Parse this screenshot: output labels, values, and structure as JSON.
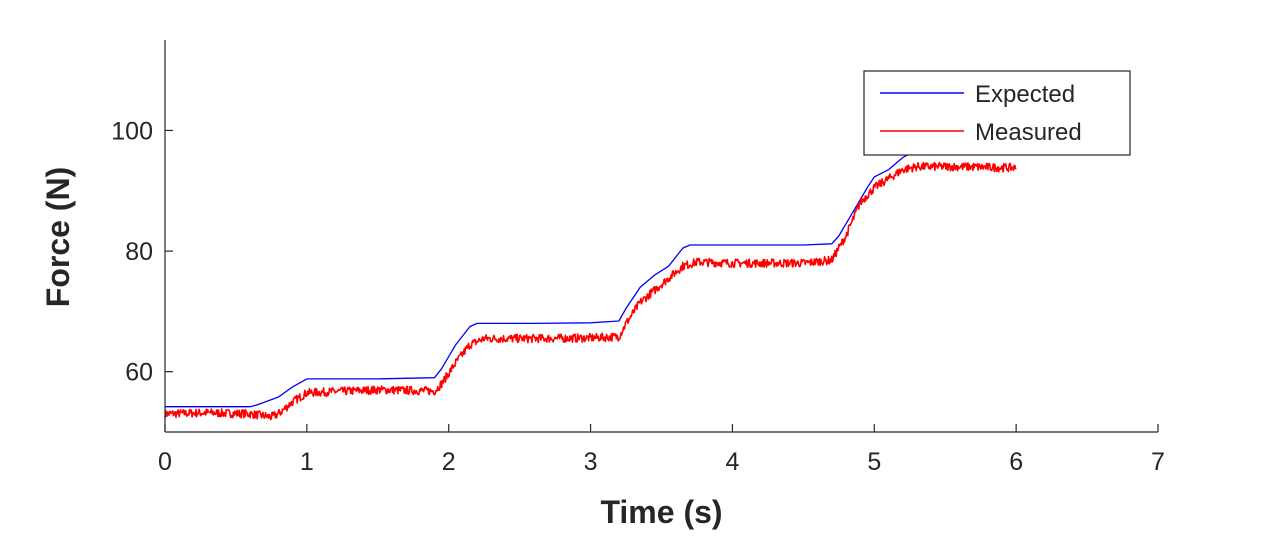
{
  "chart_data": {
    "type": "line",
    "title": "",
    "xlabel": "Time (s)",
    "ylabel": "Force (N)",
    "xlim": [
      0,
      7
    ],
    "ylim": [
      50,
      115
    ],
    "xticks": [
      "0",
      "1",
      "2",
      "3",
      "4",
      "5",
      "6",
      "7"
    ],
    "yticks": [
      "60",
      "80",
      "100"
    ],
    "grid": false,
    "legend_position": "top-right",
    "series": [
      {
        "name": "Expected",
        "color": "#0000ff",
        "noise": 0,
        "x": [
          0,
          0.3,
          0.6,
          0.65,
          0.8,
          0.9,
          1.0,
          1.5,
          1.9,
          1.95,
          2.05,
          2.15,
          2.2,
          2.6,
          3.0,
          3.2,
          3.25,
          3.35,
          3.45,
          3.55,
          3.65,
          3.7,
          4.0,
          4.5,
          4.7,
          4.75,
          4.85,
          4.95,
          5.0,
          5.1,
          5.2,
          5.28
        ],
        "values": [
          54.2,
          54.2,
          54.2,
          54.5,
          55.8,
          57.5,
          58.8,
          58.8,
          59.0,
          60.5,
          64.5,
          67.5,
          68.0,
          68.0,
          68.1,
          68.4,
          70.5,
          74.0,
          76.0,
          77.5,
          80.5,
          81.0,
          81.0,
          81.0,
          81.2,
          82.5,
          86.5,
          90.5,
          92.3,
          93.5,
          95.5,
          96.5
        ]
      },
      {
        "name": "Measured",
        "color": "#ff0000",
        "noise": 0.7,
        "x": [
          0,
          0.3,
          0.6,
          0.75,
          0.8,
          0.9,
          1.0,
          1.5,
          1.9,
          1.95,
          2.05,
          2.15,
          2.25,
          2.6,
          3.0,
          3.2,
          3.25,
          3.35,
          3.45,
          3.55,
          3.65,
          3.75,
          4.0,
          4.5,
          4.7,
          4.8,
          4.9,
          5.0,
          5.1,
          5.2,
          5.3,
          5.6,
          6.0
        ],
        "values": [
          53.0,
          53.2,
          53.0,
          52.5,
          53.0,
          55.0,
          56.5,
          57.0,
          56.8,
          58.0,
          61.5,
          64.5,
          65.5,
          65.5,
          65.6,
          65.8,
          68.0,
          71.5,
          73.5,
          75.5,
          77.5,
          78.2,
          78.0,
          78.0,
          78.5,
          82.5,
          88.0,
          90.5,
          92.0,
          93.5,
          94.0,
          94.0,
          93.8
        ]
      }
    ]
  }
}
